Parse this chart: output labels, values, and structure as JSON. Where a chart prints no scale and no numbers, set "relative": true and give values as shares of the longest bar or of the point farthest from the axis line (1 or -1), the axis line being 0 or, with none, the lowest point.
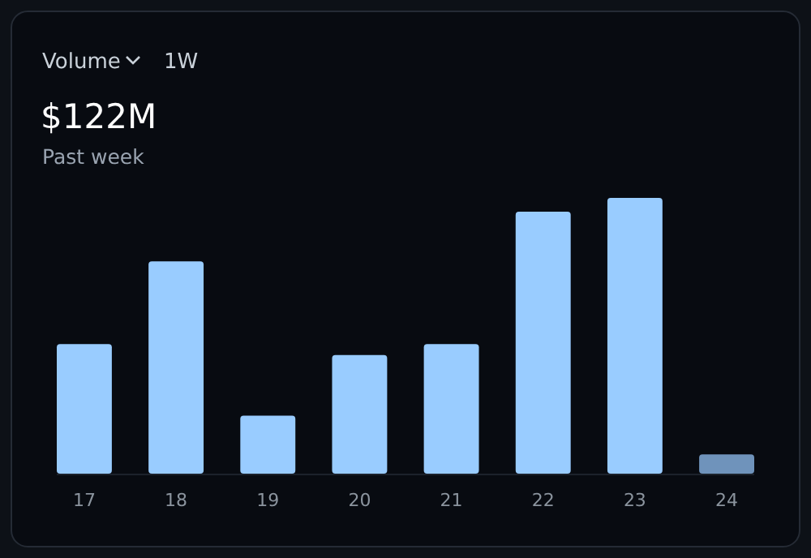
{
  "chart_data": {
    "type": "bar",
    "title": "$122M",
    "subtitle": "Past week",
    "annotations": [
      "Volume",
      "1W"
    ],
    "categories": [
      "17",
      "18",
      "19",
      "20",
      "21",
      "22",
      "23",
      "24"
    ],
    "values": [
      0.47,
      0.77,
      0.21,
      0.43,
      0.47,
      0.95,
      1,
      0.07
    ],
    "colors": [
      "#99ccff",
      "#99ccff",
      "#99ccff",
      "#99ccff",
      "#99ccff",
      "#99ccff",
      "#99ccff",
      "#6f93bb"
    ],
    "relative": true
  }
}
